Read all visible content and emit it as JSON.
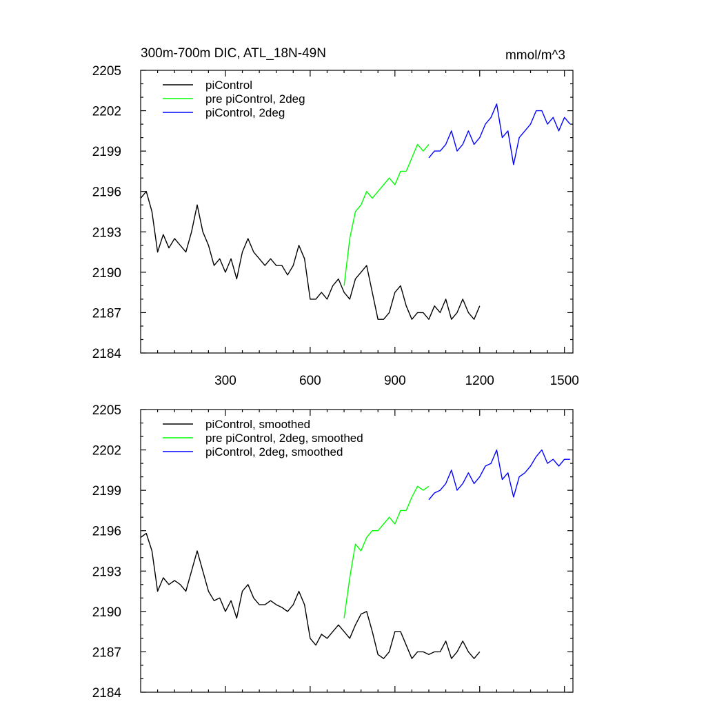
{
  "title_left": "300m-700m DIC, ATL_18N-49N",
  "title_right": "mmol/m^3",
  "colors": {
    "black": "#000000",
    "green": "#00ff00",
    "blue": "#0000ff"
  },
  "chart_data": [
    {
      "type": "line",
      "xlim": [
        0,
        1530
      ],
      "ylim": [
        2184,
        2205
      ],
      "yticks": [
        "2184",
        "2187",
        "2190",
        "2193",
        "2196",
        "2199",
        "2202",
        "2205"
      ],
      "xticks": [
        "300",
        "600",
        "900",
        "1200",
        "1500"
      ],
      "show_xtick_labels": true,
      "legend": "top-left",
      "series": [
        {
          "name": "piControl",
          "color": "#000000",
          "x": [
            0,
            20,
            40,
            60,
            80,
            100,
            120,
            140,
            160,
            180,
            200,
            220,
            240,
            260,
            280,
            300,
            320,
            340,
            360,
            380,
            400,
            420,
            440,
            460,
            480,
            500,
            520,
            540,
            560,
            580,
            600,
            620,
            640,
            660,
            680,
            700,
            720,
            740,
            760,
            780,
            800,
            820,
            840,
            860,
            880,
            900,
            920,
            940,
            960,
            980,
            1000,
            1020,
            1040,
            1060,
            1080,
            1100,
            1120,
            1140,
            1160,
            1180,
            1200
          ],
          "y": [
            2195.5,
            2196.0,
            2194.5,
            2191.5,
            2192.8,
            2191.8,
            2192.5,
            2192.0,
            2191.5,
            2193.0,
            2195.0,
            2193.0,
            2192.0,
            2190.5,
            2191.0,
            2190.0,
            2191.0,
            2189.5,
            2191.5,
            2192.5,
            2191.5,
            2191.0,
            2190.5,
            2191.0,
            2190.5,
            2190.5,
            2189.8,
            2190.5,
            2192.0,
            2191.0,
            2188.0,
            2188.0,
            2188.5,
            2188.0,
            2189.0,
            2189.5,
            2188.5,
            2188.0,
            2189.5,
            2190.0,
            2190.5,
            2188.5,
            2186.5,
            2186.5,
            2187.0,
            2188.5,
            2189.0,
            2187.5,
            2186.5,
            2187.0,
            2187.0,
            2186.5,
            2187.5,
            2187.0,
            2188.0,
            2186.5,
            2187.0,
            2188.0,
            2187.0,
            2186.5,
            2187.5
          ]
        },
        {
          "name": "pre piControl, 2deg",
          "color": "#00ff00",
          "x": [
            720,
            740,
            760,
            780,
            800,
            820,
            840,
            860,
            880,
            900,
            920,
            940,
            960,
            980,
            1000,
            1020
          ],
          "y": [
            2189.0,
            2192.5,
            2194.5,
            2195.0,
            2196.0,
            2195.5,
            2196.0,
            2196.5,
            2197.0,
            2196.5,
            2197.5,
            2197.5,
            2198.5,
            2199.5,
            2199.0,
            2199.5
          ]
        },
        {
          "name": "piControl, 2deg",
          "color": "#0000ff",
          "x": [
            1020,
            1040,
            1060,
            1080,
            1100,
            1120,
            1140,
            1160,
            1180,
            1200,
            1220,
            1240,
            1260,
            1280,
            1300,
            1320,
            1340,
            1360,
            1380,
            1400,
            1420,
            1440,
            1460,
            1480,
            1500,
            1520
          ],
          "y": [
            2198.5,
            2199.0,
            2199.0,
            2199.5,
            2200.5,
            2199.0,
            2199.5,
            2200.5,
            2199.5,
            2200.0,
            2201.0,
            2201.5,
            2202.5,
            2200.0,
            2200.5,
            2198.0,
            2200.0,
            2200.5,
            2201.0,
            2202.0,
            2202.0,
            2201.0,
            2201.5,
            2200.5,
            2201.5,
            2201.0
          ]
        }
      ]
    },
    {
      "type": "line",
      "xlim": [
        0,
        1530
      ],
      "ylim": [
        2184,
        2205
      ],
      "yticks": [
        "2184",
        "2187",
        "2190",
        "2193",
        "2196",
        "2199",
        "2202",
        "2205"
      ],
      "xticks": [
        "300",
        "600",
        "900",
        "1200",
        "1500"
      ],
      "show_xtick_labels": false,
      "legend": "top-left",
      "series": [
        {
          "name": "piControl, smoothed",
          "color": "#000000",
          "x": [
            0,
            20,
            40,
            60,
            80,
            100,
            120,
            140,
            160,
            180,
            200,
            220,
            240,
            260,
            280,
            300,
            320,
            340,
            360,
            380,
            400,
            420,
            440,
            460,
            480,
            500,
            520,
            540,
            560,
            580,
            600,
            620,
            640,
            660,
            680,
            700,
            720,
            740,
            760,
            780,
            800,
            820,
            840,
            860,
            880,
            900,
            920,
            940,
            960,
            980,
            1000,
            1020,
            1040,
            1060,
            1080,
            1100,
            1120,
            1140,
            1160,
            1180,
            1200
          ],
          "y": [
            2195.5,
            2195.8,
            2194.5,
            2191.5,
            2192.5,
            2192.0,
            2192.3,
            2192.0,
            2191.5,
            2193.0,
            2194.5,
            2193.0,
            2191.5,
            2190.8,
            2191.0,
            2190.0,
            2190.8,
            2189.5,
            2191.5,
            2192.0,
            2191.0,
            2190.5,
            2190.5,
            2190.8,
            2190.5,
            2190.3,
            2190.0,
            2190.5,
            2191.5,
            2190.5,
            2188.0,
            2187.5,
            2188.3,
            2188.0,
            2188.5,
            2189.0,
            2188.5,
            2188.0,
            2189.0,
            2189.8,
            2190.0,
            2188.5,
            2186.8,
            2186.5,
            2187.0,
            2188.5,
            2188.5,
            2187.5,
            2186.5,
            2187.0,
            2187.0,
            2186.8,
            2187.0,
            2187.0,
            2187.8,
            2186.5,
            2187.0,
            2187.8,
            2187.0,
            2186.5,
            2187.0
          ]
        },
        {
          "name": "pre piControl, 2deg, smoothed",
          "color": "#00ff00",
          "x": [
            720,
            740,
            760,
            780,
            800,
            820,
            840,
            860,
            880,
            900,
            920,
            940,
            960,
            980,
            1000,
            1020
          ],
          "y": [
            2189.5,
            2192.5,
            2195.0,
            2194.5,
            2195.5,
            2196.0,
            2196.0,
            2196.5,
            2197.0,
            2196.5,
            2197.5,
            2197.5,
            2198.5,
            2199.3,
            2199.0,
            2199.3
          ]
        },
        {
          "name": "piControl, 2deg, smoothed",
          "color": "#0000ff",
          "x": [
            1020,
            1040,
            1060,
            1080,
            1100,
            1120,
            1140,
            1160,
            1180,
            1200,
            1220,
            1240,
            1260,
            1280,
            1300,
            1320,
            1340,
            1360,
            1380,
            1400,
            1420,
            1440,
            1460,
            1480,
            1500,
            1520
          ],
          "y": [
            2198.3,
            2198.8,
            2199.0,
            2199.5,
            2200.5,
            2199.0,
            2199.5,
            2200.3,
            2199.5,
            2200.0,
            2200.8,
            2201.0,
            2202.0,
            2199.8,
            2200.3,
            2198.5,
            2200.0,
            2200.3,
            2200.8,
            2201.5,
            2202.0,
            2201.0,
            2201.3,
            2200.8,
            2201.3,
            2201.3
          ]
        }
      ]
    }
  ]
}
